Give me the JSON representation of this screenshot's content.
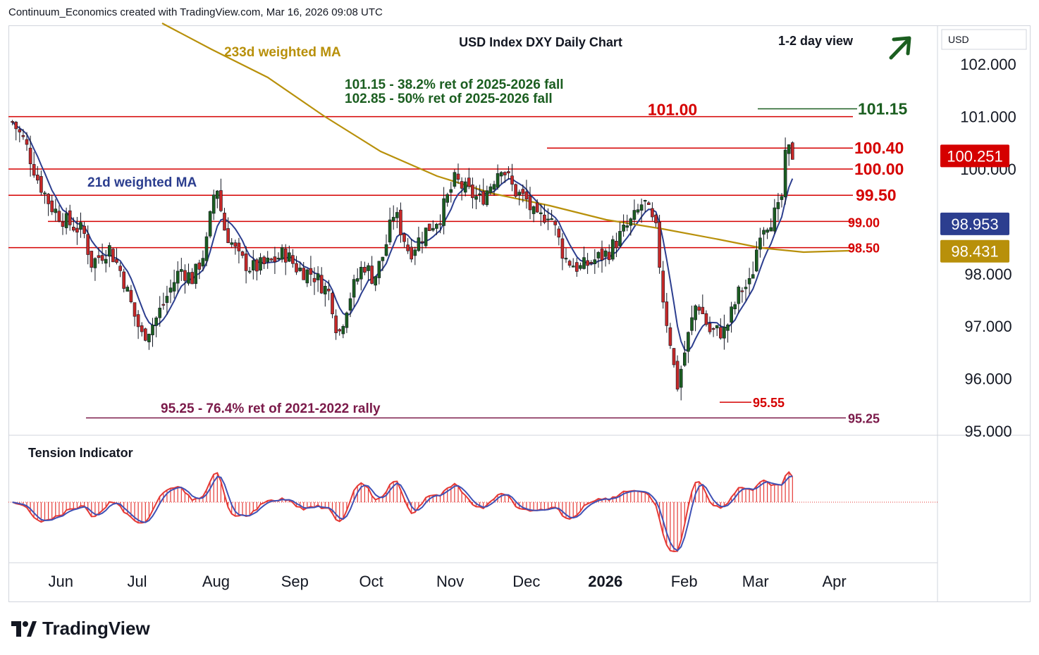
{
  "header": {
    "credit": "Continuum_Economics created with TradingView.com, Mar 16, 2026 09:08 UTC"
  },
  "branding": {
    "logo_text": "TradingView"
  },
  "chart_data": {
    "type": "candlestick",
    "title": "USD Index DXY Daily Chart",
    "view_label": "1-2 day view",
    "view_direction": "up",
    "currency_label": "USD",
    "y_axis_ticks": [
      "102.000",
      "101.000",
      "100.000",
      "98.000",
      "97.000",
      "96.000",
      "95.000"
    ],
    "ylim": [
      94.9,
      102.5
    ],
    "x_axis_ticks": [
      {
        "label": "Jun",
        "bold": false
      },
      {
        "label": "Jul",
        "bold": false
      },
      {
        "label": "Aug",
        "bold": false
      },
      {
        "label": "Sep",
        "bold": false
      },
      {
        "label": "Oct",
        "bold": false
      },
      {
        "label": "Nov",
        "bold": false
      },
      {
        "label": "Dec",
        "bold": false
      },
      {
        "label": "2026",
        "bold": true
      },
      {
        "label": "Feb",
        "bold": false
      },
      {
        "label": "Mar",
        "bold": false
      },
      {
        "label": "Apr",
        "bold": false
      }
    ],
    "price_badges": [
      {
        "label": "100.251",
        "value": 100.251,
        "color": "#d50000"
      },
      {
        "label": "98.953",
        "value": 98.953,
        "color": "#2c3e8f"
      },
      {
        "label": "98.431",
        "value": 98.431,
        "color": "#b8900a"
      }
    ],
    "horizontal_levels": [
      {
        "value": 101.0,
        "label": "101.00"
      },
      {
        "value": 100.4,
        "label": "100.40"
      },
      {
        "value": 100.0,
        "label": "100.00"
      },
      {
        "value": 99.5,
        "label": "99.50"
      },
      {
        "value": 99.0,
        "label": "99.00"
      },
      {
        "value": 98.5,
        "label": "98.50"
      }
    ],
    "retracements": [
      {
        "value": 101.15,
        "label": "101.15",
        "color": "#1b5e20"
      },
      {
        "value": 95.25,
        "label": "95.25",
        "color": "#7b1a4a"
      }
    ],
    "low_marker": {
      "value": 95.55,
      "label": "95.55"
    },
    "annotations": [
      {
        "text": "101.15 - 38.2% ret of 2025-2026 fall",
        "color": "#1b5e20"
      },
      {
        "text": "102.85 - 50% ret of 2025-2026 fall",
        "color": "#1b5e20"
      },
      {
        "text": "95.25 - 76.4% ret of 2021-2022 rally",
        "color": "#7b1a4a"
      }
    ],
    "series": [
      {
        "name": "233d weighted MA",
        "color": "#b8900a"
      },
      {
        "name": "21d weighted MA",
        "color": "#2c3e8f"
      }
    ],
    "candle_colors": {
      "up": "#1b5e20",
      "down": "#c62828"
    },
    "indicator": {
      "name": "Tension Indicator",
      "colors": {
        "histogram": "#e53935",
        "signal": "#3f51b5"
      }
    },
    "close_anchors": [
      [
        "2025-05-13",
        100.9
      ],
      [
        "2025-05-18",
        100.5
      ],
      [
        "2025-05-23",
        99.8
      ],
      [
        "2025-05-28",
        99.3
      ],
      [
        "2025-06-03",
        99.0
      ],
      [
        "2025-06-10",
        98.8
      ],
      [
        "2025-06-13",
        98.2
      ],
      [
        "2025-06-20",
        98.5
      ],
      [
        "2025-06-25",
        98.0
      ],
      [
        "2025-06-30",
        97.2
      ],
      [
        "2025-07-03",
        96.8
      ],
      [
        "2025-07-08",
        97.1
      ],
      [
        "2025-07-13",
        97.6
      ],
      [
        "2025-07-18",
        98.1
      ],
      [
        "2025-07-23",
        97.9
      ],
      [
        "2025-07-28",
        98.5
      ],
      [
        "2025-08-01",
        99.8
      ],
      [
        "2025-08-04",
        98.9
      ],
      [
        "2025-08-10",
        98.3
      ],
      [
        "2025-08-15",
        98.1
      ],
      [
        "2025-08-22",
        98.2
      ],
      [
        "2025-08-28",
        98.4
      ],
      [
        "2025-09-02",
        98.1
      ],
      [
        "2025-09-08",
        98.0
      ],
      [
        "2025-09-15",
        97.6
      ],
      [
        "2025-09-18",
        96.8
      ],
      [
        "2025-09-22",
        97.5
      ],
      [
        "2025-09-28",
        98.2
      ],
      [
        "2025-10-02",
        97.9
      ],
      [
        "2025-10-06",
        98.4
      ],
      [
        "2025-10-10",
        99.2
      ],
      [
        "2025-10-16",
        98.4
      ],
      [
        "2025-10-22",
        98.8
      ],
      [
        "2025-10-28",
        99.1
      ],
      [
        "2025-11-03",
        99.8
      ],
      [
        "2025-11-07",
        99.6
      ],
      [
        "2025-11-13",
        99.4
      ],
      [
        "2025-11-18",
        99.8
      ],
      [
        "2025-11-21",
        100.1
      ],
      [
        "2025-11-26",
        99.6
      ],
      [
        "2025-12-01",
        99.4
      ],
      [
        "2025-12-05",
        99.0
      ],
      [
        "2025-12-10",
        99.2
      ],
      [
        "2025-12-16",
        98.3
      ],
      [
        "2025-12-22",
        98.1
      ],
      [
        "2025-12-29",
        98.3
      ],
      [
        "2026-01-02",
        98.4
      ],
      [
        "2026-01-08",
        98.8
      ],
      [
        "2026-01-13",
        99.1
      ],
      [
        "2026-01-16",
        99.4
      ],
      [
        "2026-01-21",
        98.8
      ],
      [
        "2026-01-24",
        97.4
      ],
      [
        "2026-01-27",
        96.6
      ],
      [
        "2026-01-29",
        95.8
      ],
      [
        "2026-02-03",
        96.9
      ],
      [
        "2026-02-06",
        97.5
      ],
      [
        "2026-02-11",
        96.9
      ],
      [
        "2026-02-17",
        96.9
      ],
      [
        "2026-02-23",
        97.7
      ],
      [
        "2026-02-27",
        97.8
      ],
      [
        "2026-03-03",
        98.9
      ],
      [
        "2026-03-06",
        99.0
      ],
      [
        "2026-03-10",
        99.2
      ],
      [
        "2026-03-12",
        99.6
      ],
      [
        "2026-03-13",
        100.4
      ],
      [
        "2026-03-16",
        100.25
      ]
    ]
  }
}
